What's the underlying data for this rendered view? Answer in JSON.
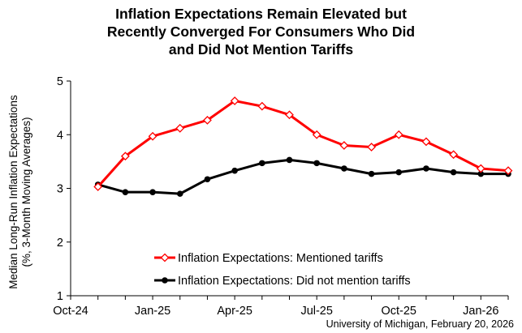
{
  "chart_data": {
    "type": "line",
    "title_lines": [
      "Inflation Expectations Remain Elevated but",
      "Recently Converged For Consumers Who Did",
      "and Did Not Mention Tariffs"
    ],
    "ylabel_lines": [
      "Median Long-Run Inflation Expectations",
      "(%, 3-Month Moving Averages)"
    ],
    "xlabel": "",
    "ylim": [
      1,
      5
    ],
    "yticks": [
      "1",
      "2",
      "3",
      "4",
      "5"
    ],
    "xlim": [
      0,
      16
    ],
    "xticks": [
      {
        "pos": 0,
        "label": "Oct-24"
      },
      {
        "pos": 3,
        "label": "Jan-25"
      },
      {
        "pos": 6,
        "label": "Apr-25"
      },
      {
        "pos": 9,
        "label": "Jul-25"
      },
      {
        "pos": 12,
        "label": "Oct-25"
      },
      {
        "pos": 15,
        "label": "Jan-26"
      }
    ],
    "x": [
      1,
      2,
      3,
      4,
      5,
      6,
      7,
      8,
      9,
      10,
      11,
      12,
      13,
      14,
      15,
      16
    ],
    "series": [
      {
        "name": "Inflation Expectations: Mentioned tariffs",
        "color": "#ff0000",
        "marker": "diamond-open",
        "values": [
          3.03,
          3.6,
          3.97,
          4.12,
          4.27,
          4.63,
          4.53,
          4.37,
          4.0,
          3.8,
          3.77,
          4.0,
          3.87,
          3.63,
          3.37,
          3.33
        ]
      },
      {
        "name": "Inflation Expectations: Did not mention tariffs",
        "color": "#000000",
        "marker": "circle-filled",
        "values": [
          3.07,
          2.93,
          2.93,
          2.9,
          3.17,
          3.33,
          3.47,
          3.53,
          3.47,
          3.37,
          3.27,
          3.3,
          3.37,
          3.3,
          3.27,
          3.27
        ]
      }
    ],
    "legend_position": "lower-center",
    "grid": false
  },
  "source_note": "University of Michigan, February 20, 2026"
}
